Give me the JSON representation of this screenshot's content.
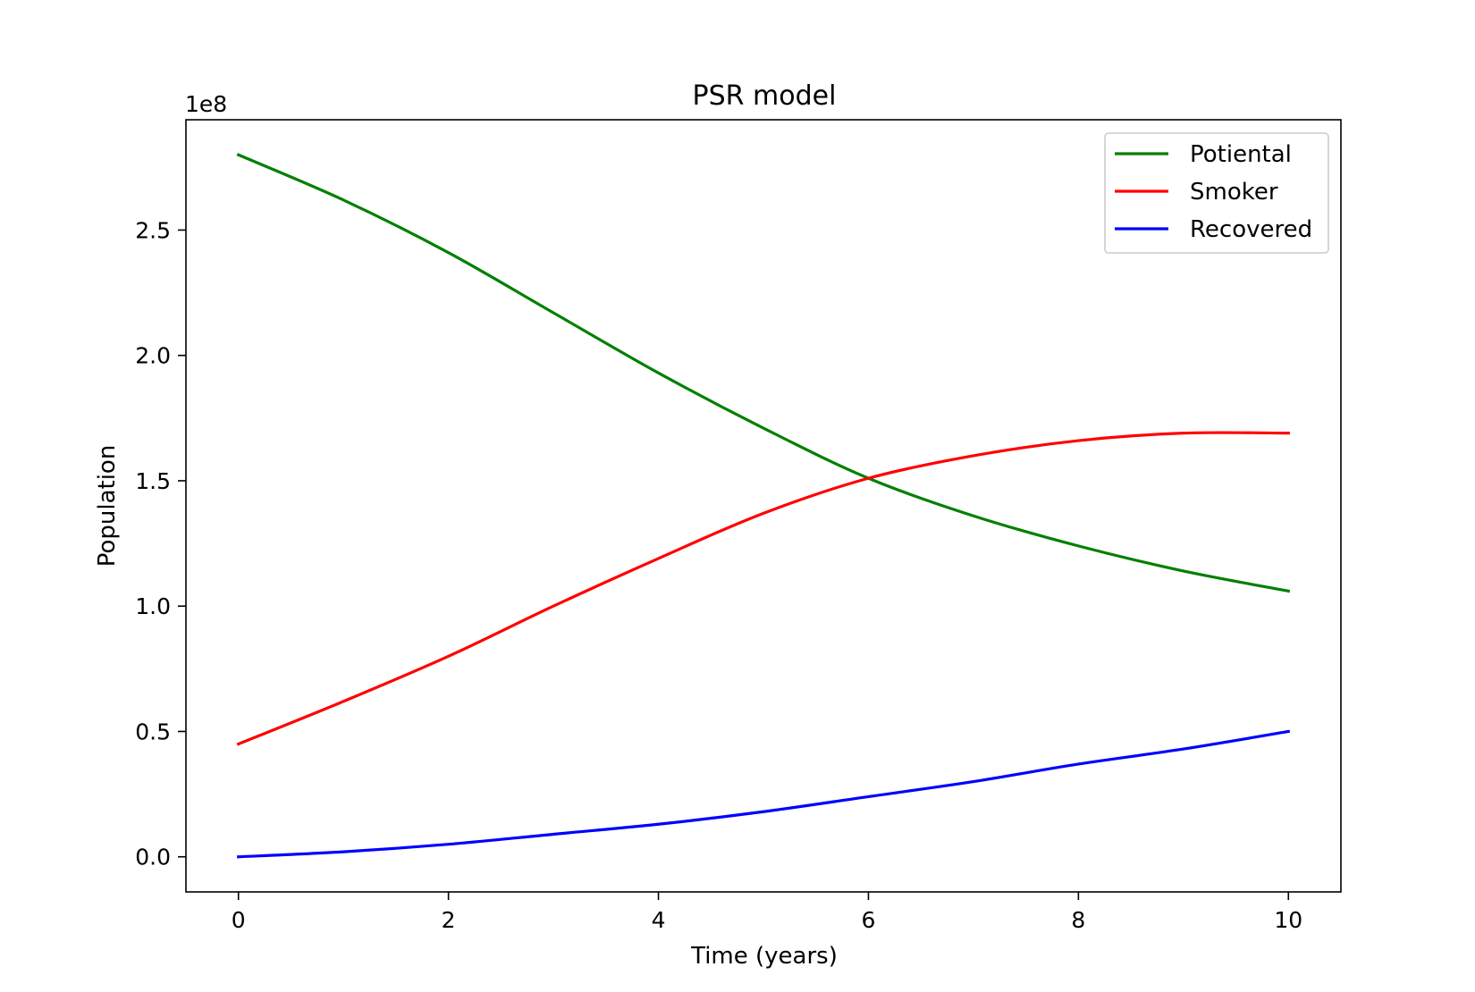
{
  "chart_data": {
    "type": "line",
    "title": "PSR model",
    "xlabel": "Time (years)",
    "ylabel": "Population",
    "y_offset_label": "1e8",
    "xlim": [
      -0.5,
      10.5
    ],
    "ylim": [
      -0.14,
      2.94
    ],
    "y_scale": 100000000,
    "x_ticks": [
      0,
      2,
      4,
      6,
      8,
      10
    ],
    "x_tick_labels": [
      "0",
      "2",
      "4",
      "6",
      "8",
      "10"
    ],
    "y_ticks": [
      0.0,
      0.5,
      1.0,
      1.5,
      2.0,
      2.5
    ],
    "y_tick_labels": [
      "0.0",
      "0.5",
      "1.0",
      "1.5",
      "2.0",
      "2.5"
    ],
    "grid": false,
    "legend_position": "top-right",
    "x": [
      0,
      1,
      2,
      3,
      4,
      5,
      6,
      7,
      8,
      9,
      10
    ],
    "series": [
      {
        "name": "Potiental",
        "color": "#008000",
        "values": [
          2.8,
          2.62,
          2.41,
          2.17,
          1.93,
          1.71,
          1.51,
          1.36,
          1.24,
          1.14,
          1.06
        ]
      },
      {
        "name": "Smoker",
        "color": "#ff0000",
        "values": [
          0.45,
          0.62,
          0.8,
          1.0,
          1.19,
          1.37,
          1.51,
          1.6,
          1.66,
          1.69,
          1.69
        ]
      },
      {
        "name": "Recovered",
        "color": "#0000ff",
        "values": [
          0.0,
          0.02,
          0.05,
          0.09,
          0.13,
          0.18,
          0.24,
          0.3,
          0.37,
          0.43,
          0.5
        ]
      }
    ]
  }
}
